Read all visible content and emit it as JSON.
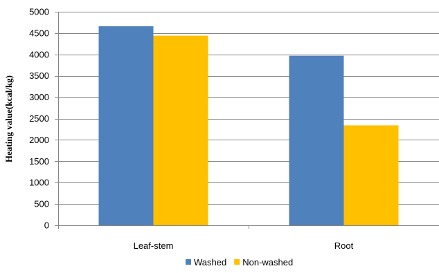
{
  "chart_data": {
    "type": "bar",
    "title": "",
    "xlabel": "",
    "ylabel": "Heating value(kcal/kg)",
    "categories": [
      "Leaf-stem",
      "Root"
    ],
    "series": [
      {
        "name": "Washed",
        "values": [
          4660,
          3970
        ],
        "color": "#4F81BD"
      },
      {
        "name": "Non-washed",
        "values": [
          4440,
          2340
        ],
        "color": "#FFC000"
      }
    ],
    "ylim": [
      0,
      5000
    ],
    "yticks": [
      "0",
      "500",
      "1000",
      "1500",
      "2000",
      "2500",
      "3000",
      "3500",
      "4000",
      "4500",
      "5000"
    ],
    "grid": true,
    "legend_position": "bottom"
  }
}
